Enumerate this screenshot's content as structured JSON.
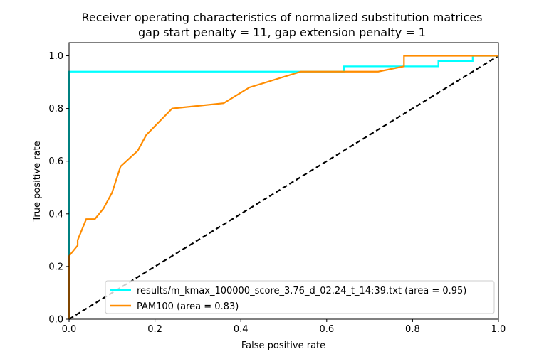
{
  "chart_data": {
    "type": "line",
    "title": "Receiver operating characteristics of normalized substitution matrices",
    "subtitle": "gap start penalty = 11, gap extension penalty = 1",
    "xlabel": "False positive rate",
    "ylabel": "True positive rate",
    "xlim": [
      0.0,
      1.0
    ],
    "ylim": [
      0.0,
      1.05
    ],
    "xticks": [
      "0.0",
      "0.2",
      "0.4",
      "0.6",
      "0.8",
      "1.0"
    ],
    "yticks": [
      "0.0",
      "0.2",
      "0.4",
      "0.6",
      "0.8",
      "1.0"
    ],
    "grid": false,
    "legend_position": "lower-right",
    "series": [
      {
        "name": "results/m_kmax_100000_score_3.76_d_02.24_t_14:39.txt (area = 0.95)",
        "color": "#00ffff",
        "x": [
          0.0,
          0.0,
          0.64,
          0.64,
          0.86,
          0.86,
          0.94,
          0.94,
          1.0
        ],
        "y": [
          0.0,
          0.94,
          0.94,
          0.96,
          0.96,
          0.98,
          0.98,
          1.0,
          1.0
        ]
      },
      {
        "name": "PAM100 (area = 0.83)",
        "color": "#ff8c00",
        "x": [
          0.0,
          0.0,
          0.02,
          0.02,
          0.04,
          0.06,
          0.08,
          0.1,
          0.12,
          0.16,
          0.18,
          0.24,
          0.36,
          0.42,
          0.54,
          0.72,
          0.78,
          0.78,
          1.0
        ],
        "y": [
          0.0,
          0.24,
          0.28,
          0.3,
          0.38,
          0.38,
          0.42,
          0.48,
          0.58,
          0.64,
          0.7,
          0.8,
          0.82,
          0.88,
          0.94,
          0.94,
          0.96,
          1.0,
          1.0
        ]
      }
    ],
    "reference_line": {
      "color": "#000000",
      "style": "dashed",
      "x": [
        0.0,
        1.0
      ],
      "y": [
        0.0,
        1.0
      ]
    }
  }
}
